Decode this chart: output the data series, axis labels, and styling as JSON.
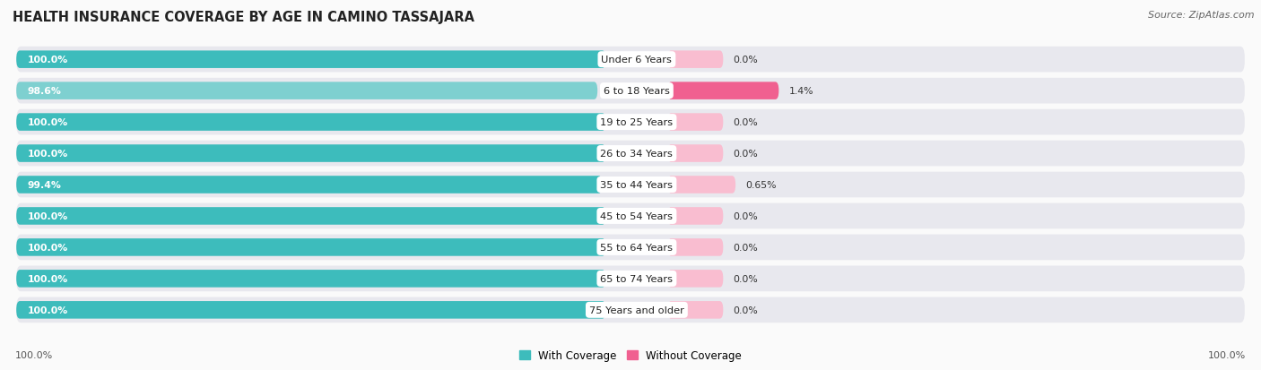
{
  "title": "HEALTH INSURANCE COVERAGE BY AGE IN CAMINO TASSAJARA",
  "source": "Source: ZipAtlas.com",
  "categories": [
    "Under 6 Years",
    "6 to 18 Years",
    "19 to 25 Years",
    "26 to 34 Years",
    "35 to 44 Years",
    "45 to 54 Years",
    "55 to 64 Years",
    "65 to 74 Years",
    "75 Years and older"
  ],
  "with_coverage": [
    100.0,
    98.6,
    100.0,
    100.0,
    99.4,
    100.0,
    100.0,
    100.0,
    100.0
  ],
  "without_coverage": [
    0.0,
    1.4,
    0.0,
    0.0,
    0.65,
    0.0,
    0.0,
    0.0,
    0.0
  ],
  "with_coverage_labels": [
    "100.0%",
    "98.6%",
    "100.0%",
    "100.0%",
    "99.4%",
    "100.0%",
    "100.0%",
    "100.0%",
    "100.0%"
  ],
  "without_coverage_labels": [
    "0.0%",
    "1.4%",
    "0.0%",
    "0.0%",
    "0.65%",
    "0.0%",
    "0.0%",
    "0.0%",
    "0.0%"
  ],
  "color_with": "#3DBCBC",
  "color_with_light": "#7ED0D0",
  "color_without_strong": "#F06090",
  "color_without_light": "#F9BDD0",
  "color_bg_row": "#E8E8EE",
  "bg_color": "#FAFAFA",
  "legend_with": "With Coverage",
  "legend_without": "Without Coverage",
  "x_left_label": "100.0%",
  "x_right_label": "100.0%"
}
